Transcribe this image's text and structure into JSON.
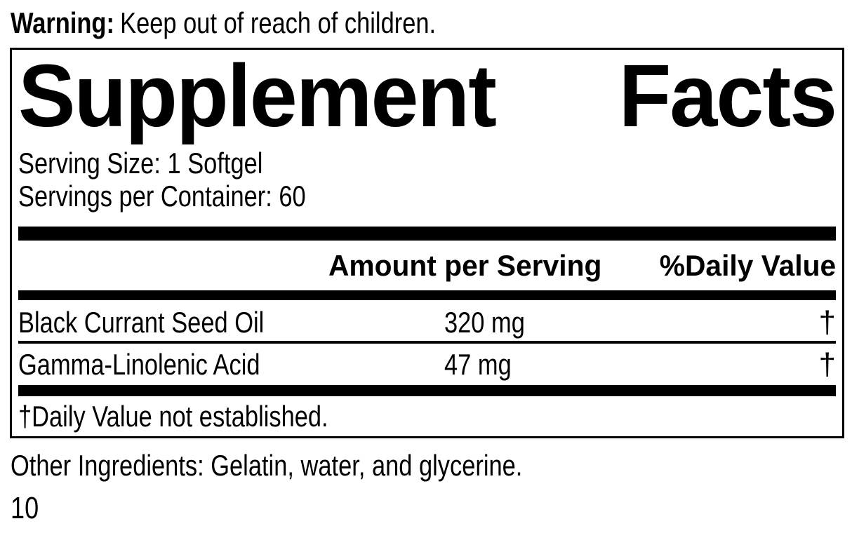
{
  "warning": {
    "label": "Warning:",
    "text": "Keep out of reach of children."
  },
  "panel": {
    "title_words": [
      "Supplement",
      "Facts"
    ],
    "serving_size": "Serving Size: 1 Softgel",
    "servings_per_container": "Servings per Container: 60",
    "columns": {
      "amount": "Amount per Serving",
      "daily_value": "%Daily Value"
    },
    "rows": [
      {
        "name": "Black Currant Seed Oil",
        "amount": "320 mg",
        "daily_value": "†"
      },
      {
        "name": "Gamma-Linolenic Acid",
        "amount": "47 mg",
        "daily_value": "†"
      }
    ],
    "footnote": "†Daily Value not established."
  },
  "other_ingredients": "Other Ingredients: Gelatin, water, and glycerine.",
  "page_number": "10",
  "colors": {
    "ink": "#000000",
    "background": "#ffffff"
  }
}
